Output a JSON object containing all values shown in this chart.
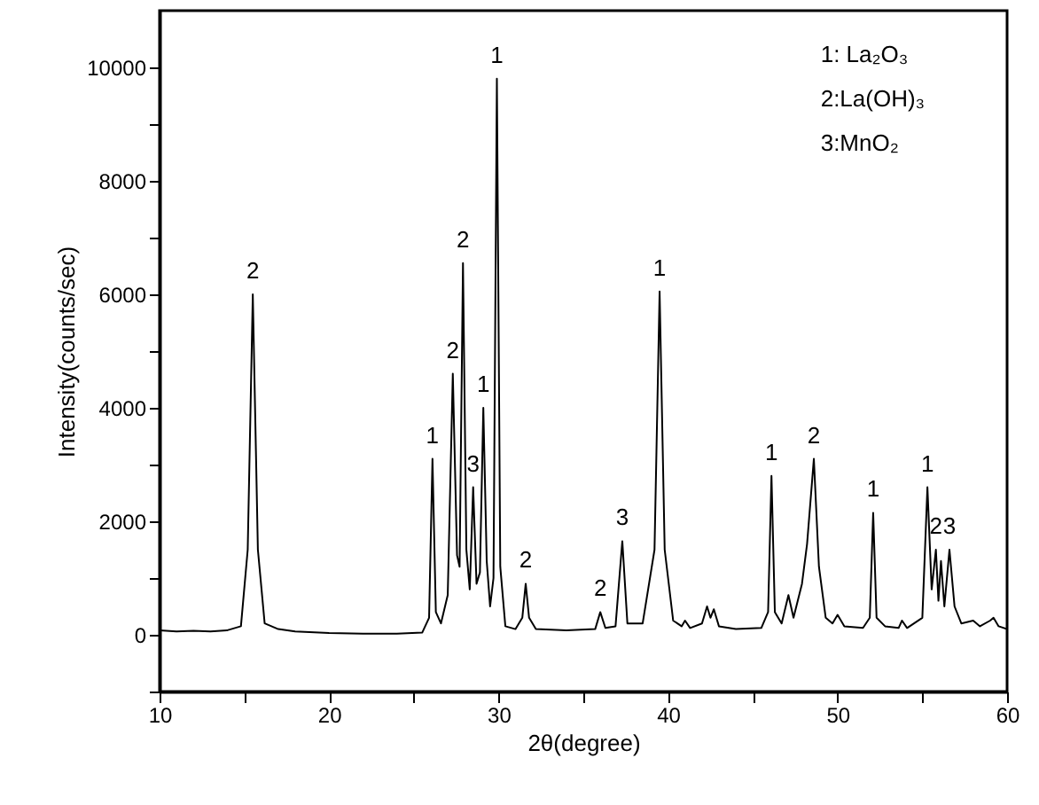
{
  "chart_data": {
    "type": "line",
    "xlabel": "2θ(degree)",
    "ylabel": "Intensity(counts/sec)",
    "x": [
      10,
      11,
      12,
      13,
      14,
      14.8,
      15.2,
      15.5,
      15.8,
      16.2,
      17,
      18,
      20,
      22,
      24,
      25.5,
      25.9,
      26.1,
      26.3,
      26.6,
      27.0,
      27.3,
      27.55,
      27.7,
      27.9,
      28.1,
      28.3,
      28.5,
      28.7,
      28.9,
      29.1,
      29.3,
      29.5,
      29.7,
      29.9,
      30.1,
      30.4,
      31.0,
      31.4,
      31.6,
      31.8,
      32.2,
      34,
      35.7,
      36.0,
      36.3,
      36.9,
      37.3,
      37.6,
      38.5,
      39.2,
      39.5,
      39.8,
      40.3,
      40.8,
      41.0,
      41.3,
      42.0,
      42.3,
      42.5,
      42.7,
      43.0,
      44,
      45.5,
      45.9,
      46.1,
      46.3,
      46.7,
      47.1,
      47.4,
      47.9,
      48.2,
      48.6,
      48.9,
      49.3,
      49.7,
      50.0,
      50.4,
      51.5,
      51.9,
      52.1,
      52.3,
      52.8,
      53.6,
      53.8,
      54.1,
      55.0,
      55.3,
      55.55,
      55.8,
      55.95,
      56.1,
      56.3,
      56.6,
      56.9,
      57.3,
      58.0,
      58.4,
      59.0,
      59.2,
      59.5,
      60
    ],
    "series": [
      {
        "color": "#000000",
        "values": [
          80,
          60,
          70,
          60,
          80,
          150,
          1500,
          6000,
          1500,
          200,
          100,
          60,
          30,
          20,
          20,
          40,
          300,
          3100,
          400,
          200,
          700,
          4600,
          1400,
          1200,
          6550,
          1500,
          800,
          2600,
          900,
          1100,
          4000,
          1300,
          500,
          1000,
          9800,
          1200,
          150,
          100,
          300,
          900,
          300,
          100,
          80,
          100,
          400,
          120,
          150,
          1650,
          200,
          200,
          1500,
          6050,
          1500,
          250,
          150,
          250,
          120,
          200,
          500,
          300,
          450,
          150,
          100,
          120,
          400,
          2800,
          400,
          200,
          700,
          300,
          900,
          1600,
          3100,
          1200,
          300,
          200,
          350,
          150,
          120,
          300,
          2150,
          300,
          150,
          120,
          250,
          120,
          300,
          2600,
          800,
          1500,
          600,
          1300,
          500,
          1500,
          500,
          200,
          250,
          150,
          250,
          300,
          150,
          100
        ]
      }
    ],
    "xlim": [
      10,
      60
    ],
    "ylim": [
      -1000,
      11000
    ],
    "xticks": [
      10,
      {
        "value": 15,
        "label": null
      },
      20,
      {
        "value": 25,
        "label": null
      },
      30,
      {
        "value": 35,
        "label": null
      },
      40,
      {
        "value": 45,
        "label": null
      },
      50,
      {
        "value": 55,
        "label": null
      },
      60
    ],
    "yticks": [
      {
        "value": -1000,
        "label": null
      },
      0,
      {
        "value": 1000,
        "label": null
      },
      2000,
      {
        "value": 3000,
        "label": null
      },
      4000,
      {
        "value": 5000,
        "label": null
      },
      6000,
      {
        "value": 7000,
        "label": null
      },
      8000,
      {
        "value": 9000,
        "label": null
      },
      10000
    ],
    "grid": false,
    "marker": "none",
    "line_style": "solid",
    "annotations": [
      "1: La₂O₃",
      "2:La(OH)₃",
      "3:MnO₂",
      {
        "text": "2",
        "x": 15.5,
        "y": 6000
      },
      {
        "text": "1",
        "x": 26.1,
        "y": 3100
      },
      {
        "text": "2",
        "x": 27.3,
        "y": 4600
      },
      {
        "text": "2",
        "x": 27.9,
        "y": 6550
      },
      {
        "text": "3",
        "x": 28.5,
        "y": 2600
      },
      {
        "text": "1",
        "x": 29.1,
        "y": 4000
      },
      {
        "text": "1",
        "x": 29.9,
        "y": 9800
      },
      {
        "text": "2",
        "x": 31.6,
        "y": 900
      },
      {
        "text": "2",
        "x": 36.0,
        "y": 400
      },
      {
        "text": "3",
        "x": 37.3,
        "y": 1650
      },
      {
        "text": "1",
        "x": 39.5,
        "y": 6050
      },
      {
        "text": "1",
        "x": 46.1,
        "y": 2800
      },
      {
        "text": "2",
        "x": 48.6,
        "y": 3100
      },
      {
        "text": "1",
        "x": 52.1,
        "y": 2150
      },
      {
        "text": "1",
        "x": 55.3,
        "y": 2600
      },
      {
        "text": "2",
        "x": 55.8,
        "y": 1500
      },
      {
        "text": "3",
        "x": 56.6,
        "y": 1500
      }
    ]
  }
}
